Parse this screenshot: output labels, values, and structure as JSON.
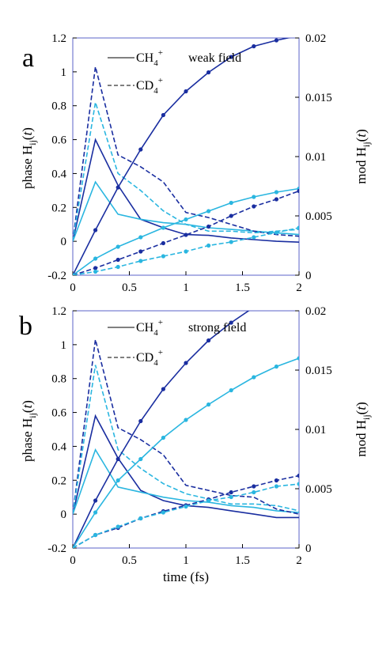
{
  "chart_data": [
    {
      "type": "line",
      "panel_label": "a",
      "annotation": "weak field",
      "legend": [
        "CH4+",
        "CD4+"
      ],
      "legend_placement": "top-center",
      "xlabel": "",
      "ylabel_left": "phase H_ij(t)",
      "ylabel_right": "mod H_ij(t)",
      "xlim": [
        0,
        2
      ],
      "ylim_left": [
        -0.2,
        1.2
      ],
      "ylim_right": [
        0,
        0.02
      ],
      "x_ticks": [
        "0",
        "0.5",
        "1",
        "1.5",
        "2"
      ],
      "y_left_ticks": [
        "-0.2",
        "0",
        "0.2",
        "0.4",
        "0.6",
        "0.8",
        "1",
        "1.2"
      ],
      "y_right_ticks": [
        "0",
        "0.005",
        "0.01",
        "0.015",
        "0.02"
      ],
      "grid": false,
      "x": [
        0,
        0.2,
        0.4,
        0.6,
        0.8,
        1.0,
        1.2,
        1.4,
        1.6,
        1.8,
        2.0
      ],
      "series": [
        {
          "color": "#1a2ea0",
          "dash": "solid",
          "axis": "left",
          "markers": false,
          "values": [
            0.0,
            0.6,
            0.33,
            0.13,
            0.08,
            0.04,
            0.035,
            0.02,
            0.01,
            0.0,
            -0.005
          ]
        },
        {
          "color": "#2ab6e0",
          "dash": "solid",
          "axis": "left",
          "markers": false,
          "values": [
            0.0,
            0.35,
            0.16,
            0.13,
            0.11,
            0.1,
            0.08,
            0.07,
            0.06,
            0.05,
            0.04
          ]
        },
        {
          "color": "#1a2ea0",
          "dash": "dashed",
          "axis": "left",
          "markers": false,
          "values": [
            0.0,
            1.03,
            0.51,
            0.44,
            0.35,
            0.17,
            0.14,
            0.1,
            0.06,
            0.04,
            0.03
          ]
        },
        {
          "color": "#2ab6e0",
          "dash": "dashed",
          "axis": "left",
          "markers": false,
          "values": [
            0.0,
            0.82,
            0.4,
            0.3,
            0.18,
            0.1,
            0.06,
            0.06,
            0.05,
            0.06,
            0.07
          ]
        },
        {
          "color": "#1a2ea0",
          "dash": "solid",
          "axis": "right",
          "markers": true,
          "values": [
            0.0,
            0.0038,
            0.0074,
            0.0106,
            0.0135,
            0.0155,
            0.0171,
            0.0184,
            0.0193,
            0.0198,
            0.0202
          ]
        },
        {
          "color": "#2ab6e0",
          "dash": "solid",
          "axis": "right",
          "markers": true,
          "values": [
            0.0,
            0.0014,
            0.0024,
            0.0032,
            0.004,
            0.0047,
            0.0054,
            0.0061,
            0.0066,
            0.007,
            0.0073
          ]
        },
        {
          "color": "#1a2ea0",
          "dash": "dashed",
          "axis": "right",
          "markers": true,
          "values": [
            0.0,
            0.0006,
            0.0013,
            0.002,
            0.0027,
            0.0034,
            0.0041,
            0.005,
            0.0058,
            0.0064,
            0.0071
          ]
        },
        {
          "color": "#2ab6e0",
          "dash": "dashed",
          "axis": "right",
          "markers": true,
          "values": [
            0.0,
            0.0003,
            0.0007,
            0.0012,
            0.0016,
            0.002,
            0.0025,
            0.0028,
            0.0032,
            0.0036,
            0.004
          ]
        }
      ]
    },
    {
      "type": "line",
      "panel_label": "b",
      "annotation": "strong field",
      "legend": [
        "CH4+",
        "CD4+"
      ],
      "legend_placement": "top-center",
      "xlabel": "time (fs)",
      "ylabel_left": "phase H_ij(t)",
      "ylabel_right": "mod H_ij(t)",
      "xlim": [
        0,
        2
      ],
      "ylim_left": [
        -0.2,
        1.2
      ],
      "ylim_right": [
        0,
        0.02
      ],
      "x_ticks": [
        "0",
        "0.5",
        "1",
        "1.5",
        "2"
      ],
      "y_left_ticks": [
        "-0.2",
        "0",
        "0.2",
        "0.4",
        "0.6",
        "0.8",
        "1",
        "1.2"
      ],
      "y_right_ticks": [
        "0",
        "0.005",
        "0.01",
        "0.015",
        "0.02"
      ],
      "grid": false,
      "x": [
        0,
        0.2,
        0.4,
        0.6,
        0.8,
        1.0,
        1.2,
        1.4,
        1.6,
        1.8,
        2.0
      ],
      "series": [
        {
          "color": "#1a2ea0",
          "dash": "solid",
          "axis": "left",
          "markers": false,
          "values": [
            0.0,
            0.58,
            0.33,
            0.14,
            0.08,
            0.05,
            0.04,
            0.02,
            0.0,
            -0.02,
            -0.02
          ]
        },
        {
          "color": "#2ab6e0",
          "dash": "solid",
          "axis": "left",
          "markers": false,
          "values": [
            0.0,
            0.38,
            0.16,
            0.13,
            0.1,
            0.08,
            0.07,
            0.05,
            0.04,
            0.02,
            0.01
          ]
        },
        {
          "color": "#1a2ea0",
          "dash": "dashed",
          "axis": "left",
          "markers": false,
          "values": [
            0.0,
            1.03,
            0.51,
            0.44,
            0.35,
            0.17,
            0.14,
            0.11,
            0.1,
            0.03,
            0.0
          ]
        },
        {
          "color": "#2ab6e0",
          "dash": "dashed",
          "axis": "left",
          "markers": false,
          "values": [
            0.0,
            0.88,
            0.38,
            0.27,
            0.18,
            0.12,
            0.09,
            0.06,
            0.06,
            0.05,
            0.02
          ]
        },
        {
          "color": "#1a2ea0",
          "dash": "solid",
          "axis": "right",
          "markers": true,
          "values": [
            0.0,
            0.004,
            0.0075,
            0.0107,
            0.0134,
            0.0156,
            0.0175,
            0.019,
            0.0203,
            0.0213,
            0.022
          ]
        },
        {
          "color": "#2ab6e0",
          "dash": "solid",
          "axis": "right",
          "markers": true,
          "values": [
            0.0,
            0.003,
            0.0057,
            0.0075,
            0.0093,
            0.0108,
            0.0121,
            0.0133,
            0.0144,
            0.0153,
            0.016
          ]
        },
        {
          "color": "#1a2ea0",
          "dash": "dashed",
          "axis": "right",
          "markers": true,
          "values": [
            0.0,
            0.0011,
            0.0017,
            0.0025,
            0.0031,
            0.0036,
            0.0041,
            0.0047,
            0.0052,
            0.0057,
            0.0061
          ]
        },
        {
          "color": "#2ab6e0",
          "dash": "dashed",
          "axis": "right",
          "markers": true,
          "values": [
            0.0,
            0.0011,
            0.0018,
            0.0025,
            0.003,
            0.0035,
            0.004,
            0.0043,
            0.0047,
            0.0052,
            0.0054
          ]
        }
      ]
    }
  ]
}
